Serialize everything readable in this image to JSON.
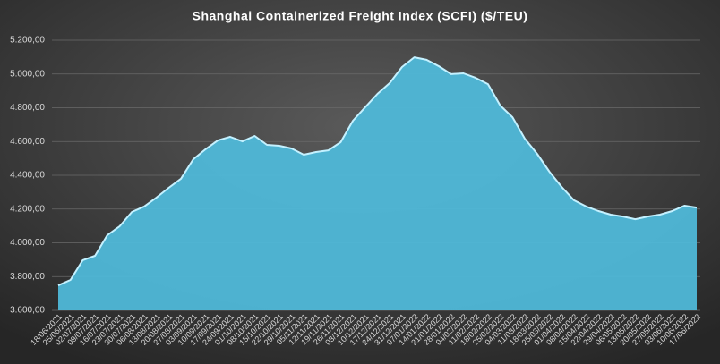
{
  "chart_data": {
    "type": "area",
    "title": "Shanghai Containerized Freight Index  (SCFI) ($/TEU)",
    "categories": [
      "18/06/2021",
      "25/06/2021",
      "02/07/2021",
      "09/07/2021",
      "16/07/2021",
      "23/07/2021",
      "30/07/2021",
      "06/08/2021",
      "13/08/2021",
      "20/08/2021",
      "27/08/2021",
      "03/09/2021",
      "10/09/2021",
      "17/09/2021",
      "24/09/2021",
      "01/10/2021",
      "08/10/2021",
      "15/10/2021",
      "22/10/2021",
      "29/10/2021",
      "05/11/2021",
      "12/11/2021",
      "19/11/2021",
      "26/11/2021",
      "03/12/2021",
      "10/12/2021",
      "17/12/2021",
      "24/12/2021",
      "31/12/2021",
      "07/01/2022",
      "14/01/2022",
      "21/01/2022",
      "28/01/2022",
      "04/02/2022",
      "11/02/2022",
      "18/02/2022",
      "25/02/2022",
      "04/03/2022",
      "11/03/2022",
      "18/03/2022",
      "25/03/2022",
      "01/04/2022",
      "08/04/2022",
      "15/04/2022",
      "22/04/2022",
      "29/04/2022",
      "06/05/2022",
      "13/05/2022",
      "20/05/2022",
      "27/05/2022",
      "03/06/2022",
      "10/06/2022",
      "17/06/2022"
    ],
    "values": [
      3748,
      3780,
      3897,
      3923,
      4045,
      4098,
      4183,
      4215,
      4268,
      4326,
      4380,
      4495,
      4554,
      4607,
      4628,
      4601,
      4633,
      4580,
      4575,
      4559,
      4522,
      4538,
      4548,
      4596,
      4723,
      4803,
      4882,
      4946,
      5041,
      5099,
      5084,
      5046,
      4999,
      5004,
      4977,
      4940,
      4813,
      4744,
      4617,
      4527,
      4421,
      4331,
      4252,
      4215,
      4188,
      4167,
      4156,
      4140,
      4156,
      4167,
      4188,
      4220,
      4209
    ],
    "color": "#4fb8d8",
    "ylim": [
      3600,
      5200
    ],
    "yticks": [
      {
        "value": 3600,
        "label": "3.600,00"
      },
      {
        "value": 3800,
        "label": "3.800,00"
      },
      {
        "value": 4000,
        "label": "4.000,00"
      },
      {
        "value": 4200,
        "label": "4.200,00"
      },
      {
        "value": 4400,
        "label": "4.400,00"
      },
      {
        "value": 4600,
        "label": "4.600,00"
      },
      {
        "value": 4800,
        "label": "4.800,00"
      },
      {
        "value": 5000,
        "label": "5.000,00"
      },
      {
        "value": 5200,
        "label": "5.200,00"
      }
    ],
    "grid": true
  }
}
